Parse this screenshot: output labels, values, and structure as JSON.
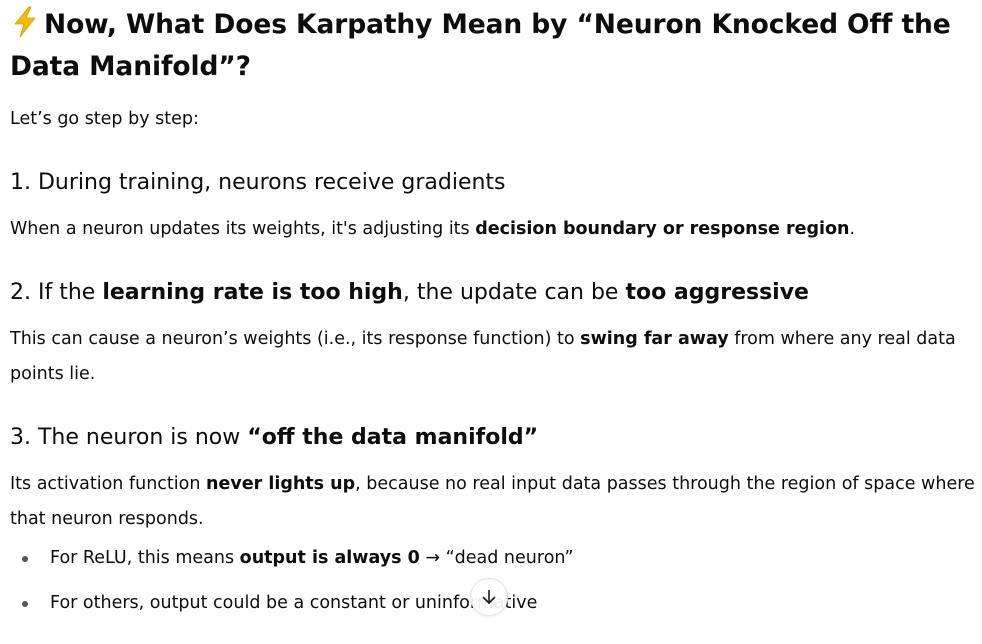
{
  "heading": {
    "icon": "lightning-bolt-icon",
    "text": "Now, What Does Karpathy Mean by “Neuron Knocked Off the Data Manifold”?"
  },
  "intro": "Let’s go step by step:",
  "steps": [
    {
      "title": "1. During training, neurons receive gradients",
      "body_pre": "When a neuron updates its weights, it's adjusting its ",
      "body_bold": "decision boundary or response region",
      "body_post": "."
    },
    {
      "title_pre": "2. If the ",
      "title_bold1": "learning rate is too high",
      "title_mid": ", the update can be ",
      "title_bold2": "too aggressive",
      "body_pre": "This can cause a neuron’s weights (i.e., its response function) to ",
      "body_bold": "swing far away",
      "body_post": " from where any real data points lie."
    },
    {
      "title_pre": "3. The neuron is now ",
      "title_bold": "“off the data manifold”",
      "body_pre": "Its activation function ",
      "body_bold": "never lights up",
      "body_post": ", because no real input data passes through the region of space where that neuron responds.",
      "bullets": [
        {
          "pre": "For ReLU, this means ",
          "bold": "output is always 0",
          "post": " → “dead neuron”"
        },
        {
          "text": "For others, output could be a constant or uninformative"
        }
      ]
    }
  ],
  "scroll_button": {
    "icon": "arrow-down-icon"
  },
  "colors": {
    "text": "#0d0d0d",
    "bolt": "#f5b800",
    "bullet": "#555555"
  }
}
